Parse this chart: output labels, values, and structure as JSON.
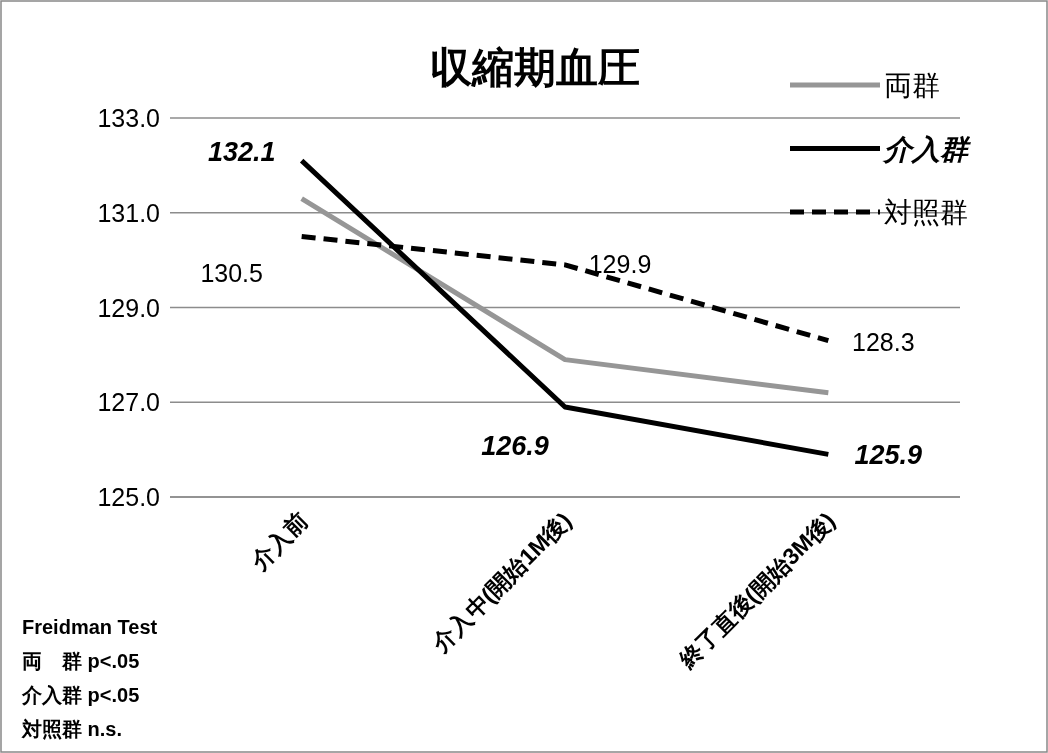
{
  "chart_data": {
    "type": "line",
    "title": "収縮期血圧",
    "categories": [
      "介入前",
      "介入中(開始1M後)",
      "終了直後(開始3M後)"
    ],
    "series": [
      {
        "name": "両群",
        "color": "#969696",
        "values": [
          131.3,
          127.9,
          127.2
        ],
        "line_style": "solid"
      },
      {
        "name": "介入群",
        "color": "#000000",
        "values": [
          132.1,
          126.9,
          125.9
        ],
        "line_style": "solid",
        "value_labels": [
          "132.1",
          "126.9",
          "125.9"
        ]
      },
      {
        "name": "対照群",
        "color": "#000000",
        "values": [
          130.5,
          129.9,
          128.3
        ],
        "line_style": "dashed",
        "value_labels": [
          "130.5",
          "129.9",
          "128.3"
        ]
      }
    ],
    "ylim": [
      125,
      133
    ],
    "yticks": [
      {
        "value": 125,
        "label": "125.0"
      },
      {
        "value": 127,
        "label": "127.0"
      },
      {
        "value": 129,
        "label": "129.0"
      },
      {
        "value": 131,
        "label": "131.0"
      },
      {
        "value": 133,
        "label": "133.0"
      }
    ],
    "grid": "y",
    "legend": "top right",
    "marker": "none",
    "annotations": [
      "Freidman Test",
      "両　群 p<.05",
      "介入群 p<.05",
      "対照群 n.s."
    ]
  }
}
